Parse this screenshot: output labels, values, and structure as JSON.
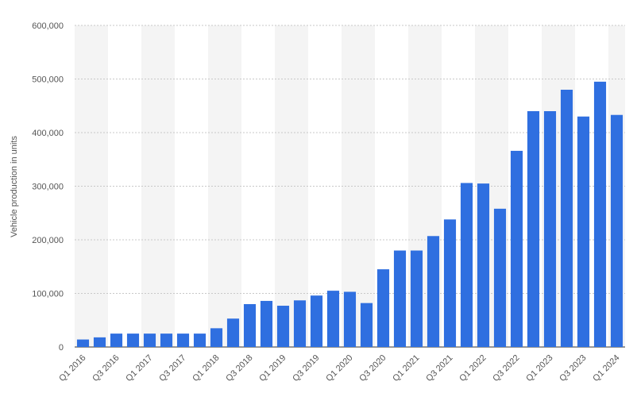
{
  "chart_data": {
    "type": "bar",
    "ylabel": "Vehicle production in units",
    "ylim": [
      0,
      600000
    ],
    "yticks": [
      0,
      100000,
      200000,
      300000,
      400000,
      500000,
      600000
    ],
    "ytick_labels": [
      "0",
      "100,000",
      "200,000",
      "300,000",
      "400,000",
      "500,000",
      "600,000"
    ],
    "grid": true,
    "bar_color": "#2f6fe0",
    "band_color": "#f4f4f4",
    "categories": [
      "Q1 2016",
      "Q2 2016",
      "Q3 2016",
      "Q4 2016",
      "Q1 2017",
      "Q2 2017",
      "Q3 2017",
      "Q4 2017",
      "Q1 2018",
      "Q2 2018",
      "Q3 2018",
      "Q4 2018",
      "Q1 2019",
      "Q2 2019",
      "Q3 2019",
      "Q4 2019",
      "Q1 2020",
      "Q2 2020",
      "Q3 2020",
      "Q4 2020",
      "Q1 2021",
      "Q2 2021",
      "Q3 2021",
      "Q4 2021",
      "Q1 2022",
      "Q2 2022",
      "Q3 2022",
      "Q4 2022",
      "Q1 2023",
      "Q2 2023",
      "Q3 2023",
      "Q4 2023",
      "Q1 2024"
    ],
    "xtick_labels": [
      "Q1 2016",
      "",
      "Q3 2016",
      "",
      "Q1 2017",
      "",
      "Q3 2017",
      "",
      "Q1 2018",
      "",
      "Q3 2018",
      "",
      "Q1 2019",
      "",
      "Q3 2019",
      "",
      "Q1 2020",
      "",
      "Q3 2020",
      "",
      "Q1 2021",
      "",
      "Q3 2021",
      "",
      "Q1 2022",
      "",
      "Q3 2022",
      "",
      "Q1 2023",
      "",
      "Q3 2023",
      "",
      "Q1 2024"
    ],
    "values": [
      14000,
      18000,
      25000,
      25000,
      25000,
      25000,
      25000,
      25000,
      35000,
      53000,
      80000,
      86000,
      77000,
      87000,
      96000,
      105000,
      103000,
      82000,
      145000,
      180000,
      180000,
      207000,
      238000,
      306000,
      305000,
      258000,
      366000,
      440000,
      440000,
      480000,
      430000,
      495000,
      433000
    ]
  }
}
